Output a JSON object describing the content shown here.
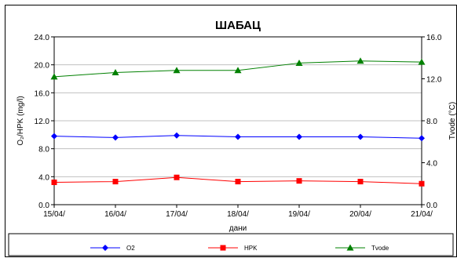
{
  "chart_data": {
    "type": "line",
    "title": "ШАБАЦ",
    "xlabel": "дани",
    "ylabel_left": "O₂/HPK (mg/l)",
    "ylabel_right": "Tvode (°C)",
    "categories": [
      "15/04/",
      "16/04/",
      "17/04/",
      "18/04/",
      "19/04/",
      "20/04/",
      "21/04/"
    ],
    "ylim_left": [
      0,
      24
    ],
    "yticks_left": [
      "0.0",
      "4.0",
      "8.0",
      "12.0",
      "16.0",
      "20.0",
      "24.0"
    ],
    "ylim_right": [
      0,
      16
    ],
    "yticks_right": [
      "0.0",
      "4.0",
      "8.0",
      "12.0",
      "16.0"
    ],
    "grid": "horizontal",
    "legend_position": "bottom",
    "series": [
      {
        "name": "O2",
        "axis": "left",
        "color": "#0000ff",
        "marker": "diamond",
        "values": [
          9.8,
          9.6,
          9.9,
          9.7,
          9.7,
          9.7,
          9.5
        ]
      },
      {
        "name": "HPK",
        "axis": "left",
        "color": "#ff0000",
        "marker": "square",
        "values": [
          3.2,
          3.3,
          3.9,
          3.3,
          3.4,
          3.3,
          3.0
        ]
      },
      {
        "name": "Tvode",
        "axis": "right",
        "color": "#008000",
        "marker": "triangle",
        "values": [
          12.2,
          12.6,
          12.8,
          12.8,
          13.5,
          13.7,
          13.6
        ]
      }
    ]
  }
}
